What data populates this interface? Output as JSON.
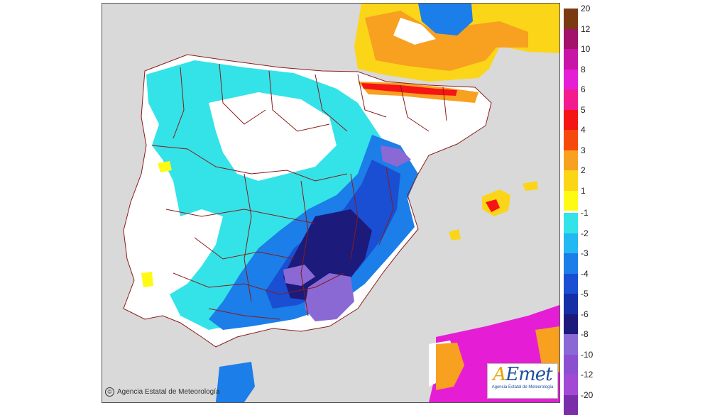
{
  "credit": "Agencia Estatal de Meteorología",
  "logo": {
    "name": "AEmet",
    "subtitle": "Agencia Estatal de Meteorología"
  },
  "legend": {
    "positive": [
      {
        "label": "20",
        "color": "#7a3b12"
      },
      {
        "label": "12",
        "color": "#a3126b"
      },
      {
        "label": "10",
        "color": "#c815a8"
      },
      {
        "label": "8",
        "color": "#e51ed6"
      },
      {
        "label": "6",
        "color": "#f21c8f"
      },
      {
        "label": "5",
        "color": "#f51515"
      },
      {
        "label": "4",
        "color": "#f54a0c"
      },
      {
        "label": "3",
        "color": "#f8a020"
      },
      {
        "label": "2",
        "color": "#fbd518"
      },
      {
        "label": "1",
        "color": "#fffa14"
      }
    ],
    "negative": [
      {
        "label": "-1",
        "color": "#33e3e8"
      },
      {
        "label": "-2",
        "color": "#22b8f2"
      },
      {
        "label": "-3",
        "color": "#1c7ee8"
      },
      {
        "label": "-4",
        "color": "#1a4fd3"
      },
      {
        "label": "-5",
        "color": "#1530a6"
      },
      {
        "label": "-6",
        "color": "#1c1a7a"
      },
      {
        "label": "-8",
        "color": "#8a69d4"
      },
      {
        "label": "-10",
        "color": "#8c4fd0"
      },
      {
        "label": "-12",
        "color": "#a24ad6"
      },
      {
        "label": "-20",
        "color": "#7a2fa8"
      }
    ]
  },
  "colors": {
    "sea": "#d9d9d9",
    "land": "#ffffff",
    "border": "#8b1a1a"
  }
}
